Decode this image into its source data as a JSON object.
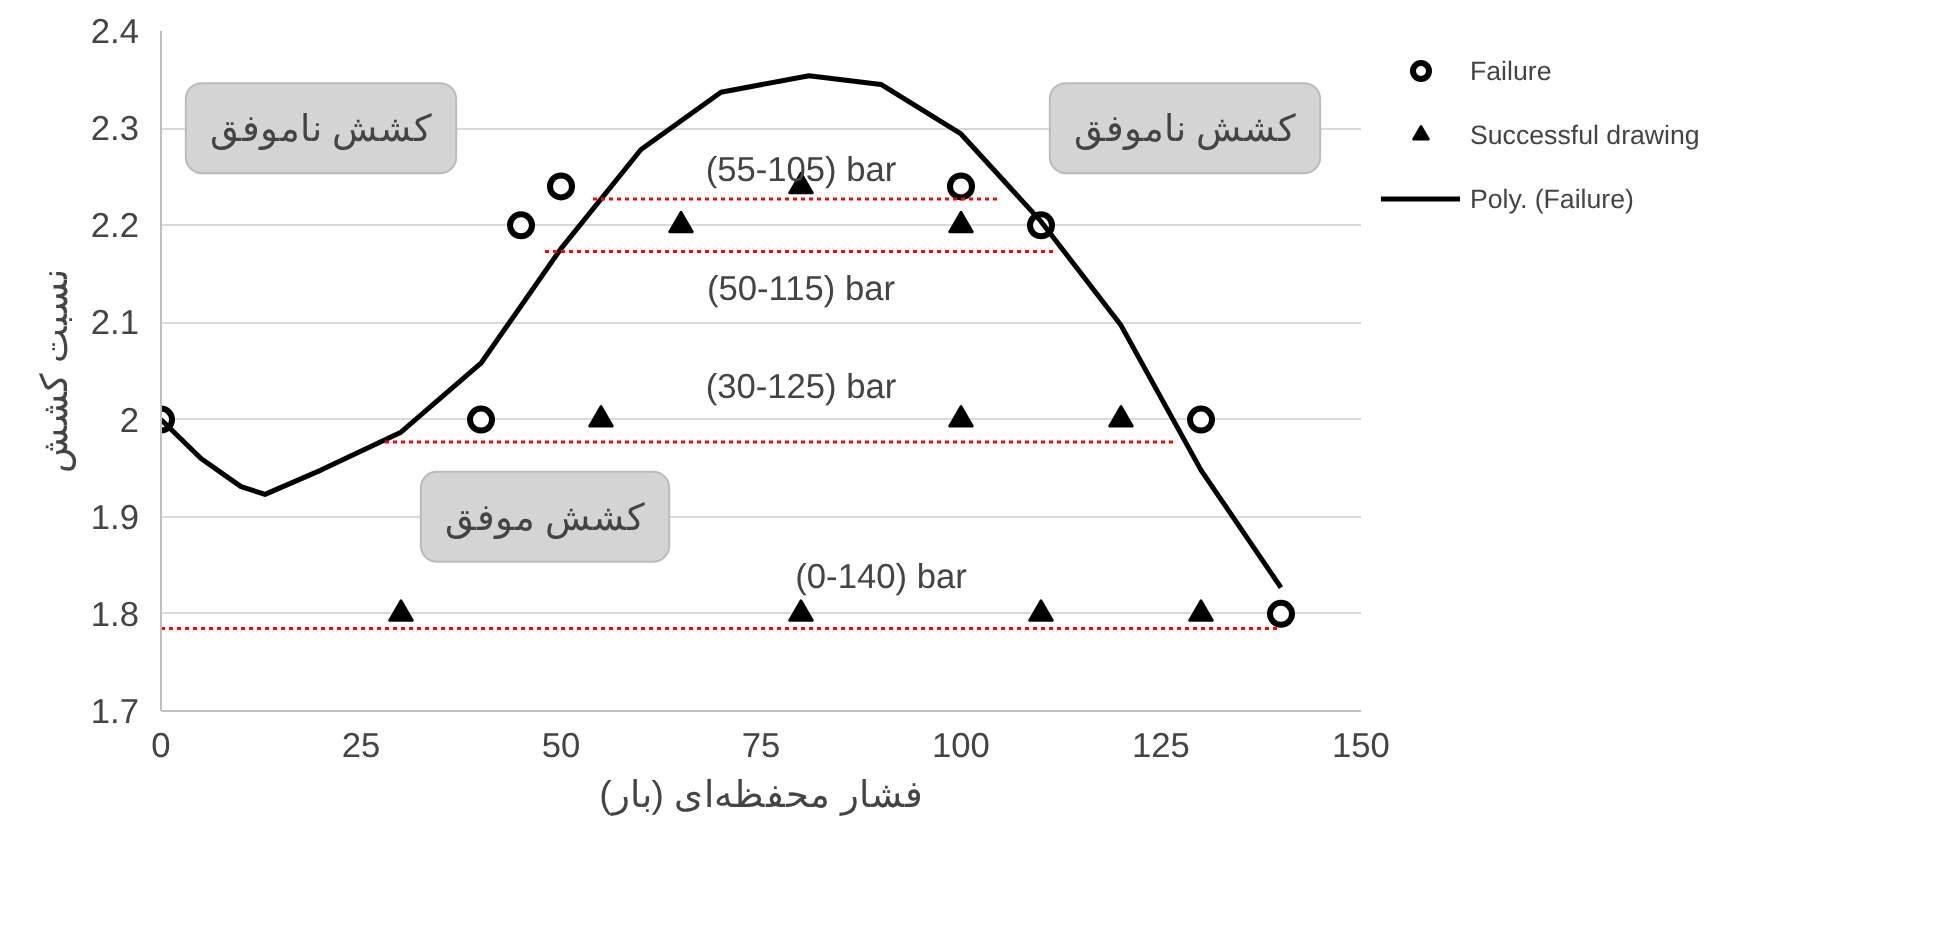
{
  "chart_data": {
    "type": "scatter",
    "xlabel": "فشار محفظه‌ای (بار)",
    "ylabel": "نسبت کشش",
    "xlim": [
      0,
      150
    ],
    "ylim": [
      1.7,
      2.4
    ],
    "xticks": [
      0,
      25,
      50,
      75,
      100,
      125,
      150
    ],
    "yticks": [
      1.7,
      1.8,
      1.9,
      2.0,
      2.1,
      2.2,
      2.3,
      2.4
    ],
    "grid": "y",
    "legend": "right",
    "series": [
      {
        "name": "Failure",
        "marker": "circle",
        "color": "#000000",
        "x": [
          0,
          40,
          45,
          50,
          100,
          110,
          130,
          140
        ],
        "values": [
          2.0,
          2.0,
          2.2,
          2.24,
          2.24,
          2.2,
          2.0,
          1.8
        ]
      },
      {
        "name": "Successful drawing",
        "marker": "triangle",
        "color": "#000000",
        "x": [
          30,
          80,
          110,
          130,
          55,
          100,
          120,
          65,
          100,
          80
        ],
        "values": [
          1.8,
          1.8,
          1.8,
          1.8,
          2.0,
          2.0,
          2.0,
          2.2,
          2.2,
          2.24
        ]
      },
      {
        "name": "Poly. (Failure)",
        "type": "line",
        "marker": "none",
        "line_style": "solid",
        "color": "#000000",
        "x": [
          0,
          5,
          10,
          13,
          20,
          30,
          40,
          50,
          60,
          70,
          81,
          90,
          100,
          110,
          120,
          130,
          140
        ],
        "values": [
          2.0,
          1.96,
          1.931,
          1.923,
          1.948,
          1.987,
          2.058,
          2.176,
          2.278,
          2.337,
          2.354,
          2.345,
          2.294,
          2.204,
          2.097,
          1.948,
          1.827
        ]
      },
      {
        "type": "line",
        "marker": "none",
        "line_style": "dotted",
        "color": "#ff0000",
        "x": [
          54,
          105
        ],
        "values": [
          2.227,
          2.227
        ]
      },
      {
        "type": "line",
        "marker": "none",
        "line_style": "dotted",
        "color": "#ff0000",
        "x": [
          48,
          112
        ],
        "values": [
          2.173,
          2.173
        ]
      },
      {
        "type": "line",
        "marker": "none",
        "line_style": "dotted",
        "color": "#ff0000",
        "x": [
          28,
          127
        ],
        "values": [
          1.977,
          1.977
        ]
      },
      {
        "type": "line",
        "marker": "none",
        "line_style": "dotted",
        "color": "#ff0000",
        "x": [
          0,
          140
        ],
        "values": [
          1.785,
          1.785
        ]
      }
    ],
    "annotations": [
      "کشش ناموفق",
      "کشش ناموفق",
      "کشش موفق",
      {
        "text": "(55-105) bar",
        "y": 2.227
      },
      {
        "text": "(50-115) bar",
        "y": 2.173
      },
      {
        "text": "(30-125) bar",
        "y": 1.977
      },
      {
        "text": "(0-140) bar",
        "y": 1.785
      }
    ]
  }
}
